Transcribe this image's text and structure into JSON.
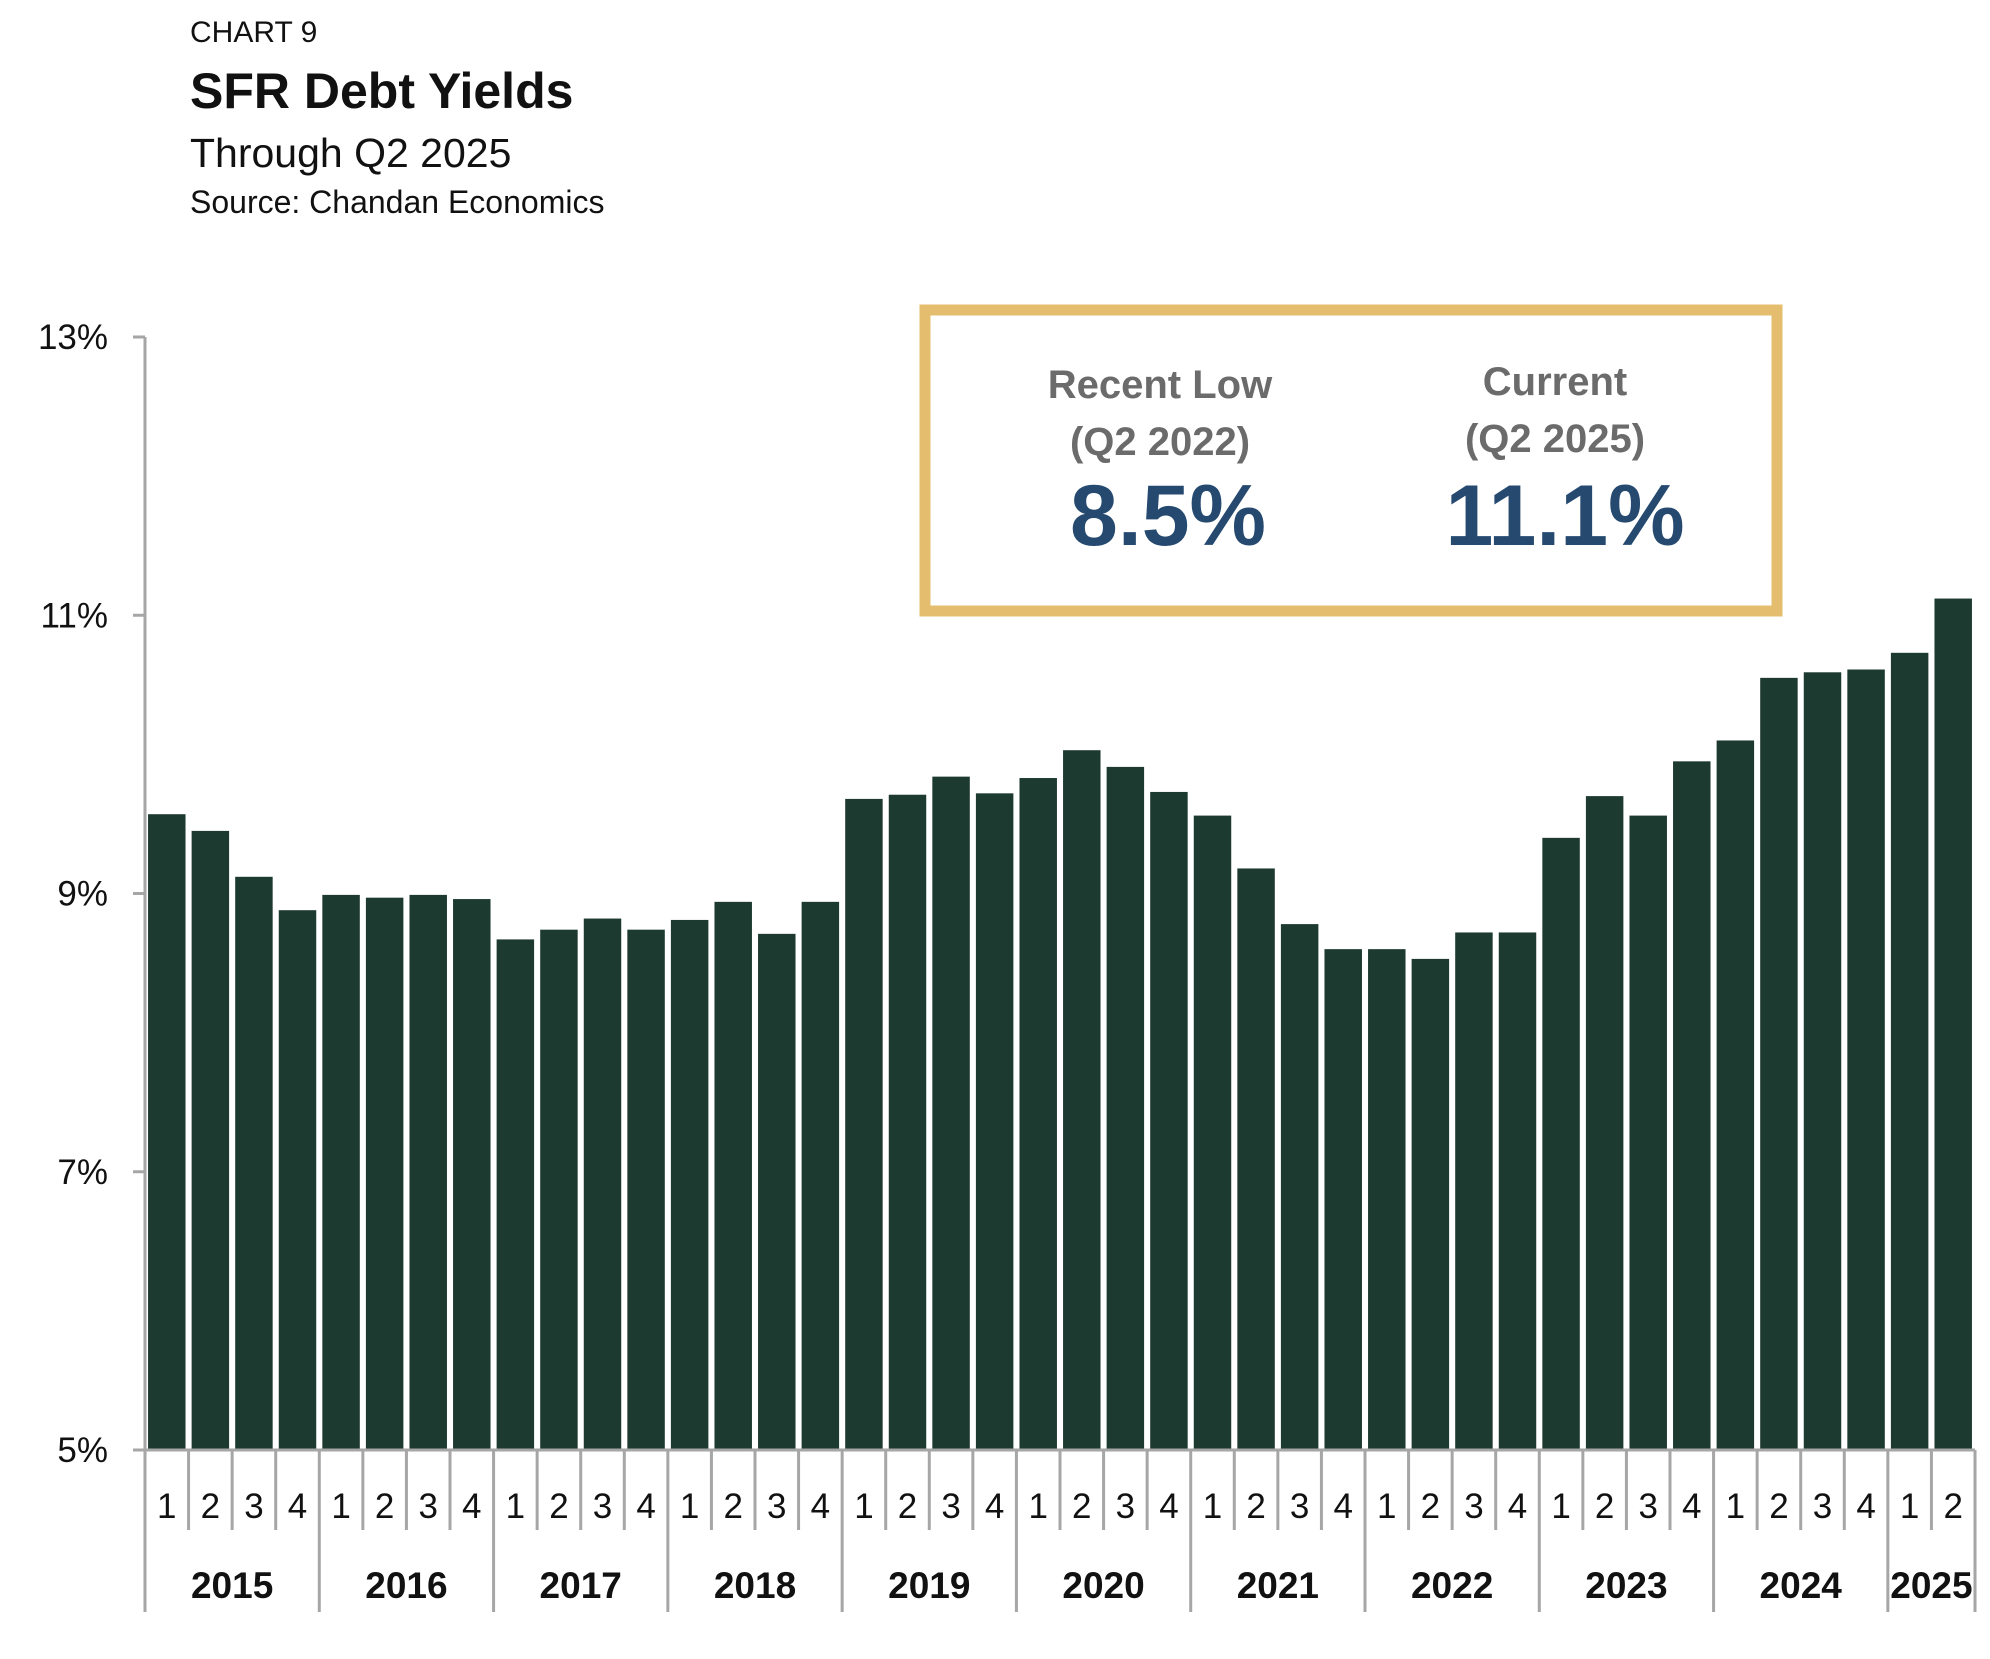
{
  "header": {
    "label": "CHART 9",
    "title": "SFR Debt Yields",
    "subtitle": "Through Q2 2025",
    "source": "Source: Chandan Economics"
  },
  "callout": {
    "left_heading_1": "Recent Low",
    "left_heading_2": "(Q2 2022)",
    "left_value": "8.5%",
    "right_heading_1": "Current",
    "right_heading_2": "(Q2 2025)",
    "right_value": "11.1%",
    "border_color": "#e5bd6f"
  },
  "colors": {
    "bar": "#1d3a30",
    "axis": "#a6a6a6",
    "value_text": "#25496f"
  },
  "chart_data": {
    "type": "bar",
    "title": "SFR Debt Yields",
    "ylim": [
      5,
      13
    ],
    "y_ticks": [
      "5%",
      "7%",
      "9%",
      "11%",
      "13%"
    ],
    "y_tick_values": [
      5,
      7,
      9,
      11,
      13
    ],
    "grid": false,
    "legend": "none",
    "categories": [
      "2015 Q1",
      "2015 Q2",
      "2015 Q3",
      "2015 Q4",
      "2016 Q1",
      "2016 Q2",
      "2016 Q3",
      "2016 Q4",
      "2017 Q1",
      "2017 Q2",
      "2017 Q3",
      "2017 Q4",
      "2018 Q1",
      "2018 Q2",
      "2018 Q3",
      "2018 Q4",
      "2019 Q1",
      "2019 Q2",
      "2019 Q3",
      "2019 Q4",
      "2020 Q1",
      "2020 Q2",
      "2020 Q3",
      "2020 Q4",
      "2021 Q1",
      "2021 Q2",
      "2021 Q3",
      "2021 Q4",
      "2022 Q1",
      "2022 Q2",
      "2022 Q3",
      "2022 Q4",
      "2023 Q1",
      "2023 Q2",
      "2023 Q3",
      "2023 Q4",
      "2024 Q1",
      "2024 Q2",
      "2024 Q3",
      "2024 Q4",
      "2025 Q1",
      "2025 Q2"
    ],
    "quarter_labels": [
      "1",
      "2",
      "3",
      "4",
      "1",
      "2",
      "3",
      "4",
      "1",
      "2",
      "3",
      "4",
      "1",
      "2",
      "3",
      "4",
      "1",
      "2",
      "3",
      "4",
      "1",
      "2",
      "3",
      "4",
      "1",
      "2",
      "3",
      "4",
      "1",
      "2",
      "3",
      "4",
      "1",
      "2",
      "3",
      "4",
      "1",
      "2",
      "3",
      "4",
      "1",
      "2"
    ],
    "years": [
      "2015",
      "2016",
      "2017",
      "2018",
      "2019",
      "2020",
      "2021",
      "2022",
      "2023",
      "2024",
      "2025"
    ],
    "values": [
      9.57,
      9.45,
      9.12,
      8.88,
      8.99,
      8.97,
      8.99,
      8.96,
      8.67,
      8.74,
      8.82,
      8.74,
      8.81,
      8.94,
      8.71,
      8.94,
      9.68,
      9.71,
      9.84,
      9.72,
      9.83,
      10.03,
      9.91,
      9.73,
      9.56,
      9.18,
      8.78,
      8.6,
      8.6,
      8.53,
      8.72,
      8.72,
      9.4,
      9.7,
      9.56,
      9.95,
      10.1,
      10.55,
      10.59,
      10.61,
      10.73,
      11.12
    ]
  }
}
